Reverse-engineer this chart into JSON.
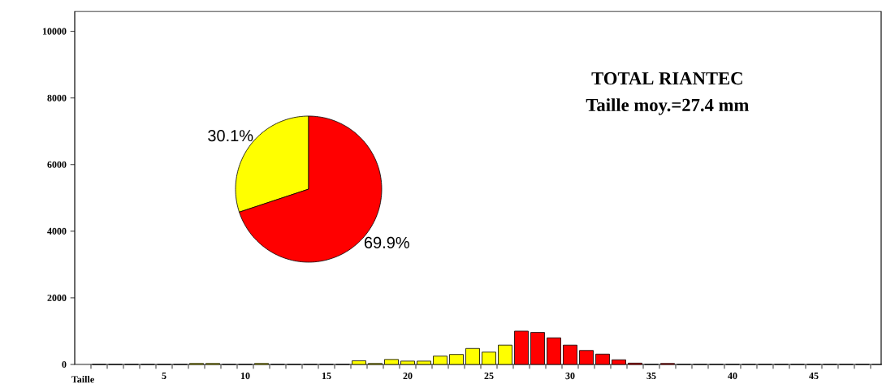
{
  "chart_data": [
    {
      "type": "bar",
      "title": "TOTAL RIANTEC",
      "subtitle": "Taille moy.=27.4 mm",
      "xlabel": "Taille",
      "categories": [
        null,
        null,
        null,
        null,
        "5",
        null,
        null,
        null,
        null,
        "10",
        null,
        null,
        null,
        null,
        "15",
        null,
        null,
        null,
        null,
        "20",
        null,
        null,
        null,
        null,
        "25",
        null,
        null,
        null,
        null,
        "30",
        null,
        null,
        null,
        null,
        "35",
        null,
        null,
        null,
        null,
        "40",
        null,
        null,
        null,
        null,
        "45",
        null,
        null,
        null,
        null
      ],
      "values": [
        0,
        0,
        0,
        0,
        0,
        0,
        30,
        30,
        0,
        0,
        30,
        0,
        0,
        0,
        0,
        0,
        110,
        30,
        150,
        100,
        100,
        250,
        300,
        480,
        370,
        580,
        1000,
        960,
        800,
        580,
        420,
        310,
        140,
        40,
        0,
        30,
        0,
        0,
        0,
        0,
        0,
        0,
        0,
        0,
        0,
        0,
        0,
        0,
        0
      ],
      "colors": [
        "#ffff00",
        "#ffff00",
        "#ffff00",
        "#ffff00",
        "#ffff00",
        "#ffff00",
        "#ffff00",
        "#ffff00",
        "#ffff00",
        "#ffff00",
        "#ffff00",
        "#ffff00",
        "#ffff00",
        "#ffff00",
        "#ffff00",
        "#ffff00",
        "#ffff00",
        "#ffff00",
        "#ffff00",
        "#ffff00",
        "#ffff00",
        "#ffff00",
        "#ffff00",
        "#ffff00",
        "#ffff00",
        "#ffff00",
        "#ff0000",
        "#ff0000",
        "#ff0000",
        "#ff0000",
        "#ff0000",
        "#ff0000",
        "#ff0000",
        "#ff0000",
        "#ff0000",
        "#ff0000",
        "#ff0000",
        "#ff0000",
        "#ff0000",
        "#ff0000",
        "#ff0000",
        "#ff0000",
        "#ff0000",
        "#ff0000",
        "#ff0000",
        "#ff0000",
        "#ff0000",
        "#ff0000",
        "#ff0000"
      ],
      "ylim": [
        0,
        10600
      ],
      "yticks": [
        0,
        2000,
        4000,
        6000,
        8000,
        10000
      ],
      "grid": false
    },
    {
      "type": "pie",
      "categories": [
        null,
        null
      ],
      "values": [
        30.1,
        69.9
      ],
      "colors": [
        "#ffff00",
        "#ff0000"
      ],
      "value_labels": [
        "30.1%",
        "69.9%"
      ]
    }
  ]
}
